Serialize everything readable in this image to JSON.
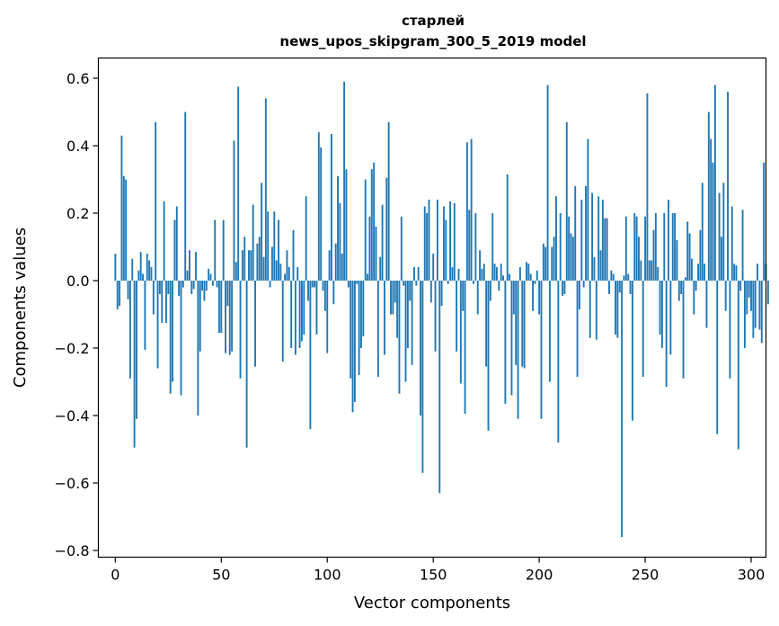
{
  "chart_data": {
    "type": "bar",
    "title_lines": [
      "старлей",
      "news_upos_skipgram_300_5_2019 model"
    ],
    "xlabel": "Vector components",
    "ylabel": "Components values",
    "xlim": [
      -8,
      307
    ],
    "ylim": [
      -0.82,
      0.66
    ],
    "xticks": [
      0,
      50,
      100,
      150,
      200,
      250,
      300
    ],
    "xtick_labels": [
      "0",
      "50",
      "100",
      "150",
      "200",
      "250",
      "300"
    ],
    "yticks": [
      0.6,
      0.4,
      0.2,
      0.0,
      -0.2,
      -0.4,
      -0.6,
      -0.8
    ],
    "ytick_labels": [
      "0.6",
      "0.4",
      "0.2",
      "0.0",
      "−0.2",
      "−0.4",
      "−0.6",
      "−0.8"
    ],
    "grid": false,
    "bar_color": "#1f77b4",
    "series": [
      {
        "x_start": 0,
        "values": [
          0.08,
          -0.085,
          -0.075,
          0.43,
          0.31,
          0.3,
          -0.055,
          -0.29,
          0.065,
          -0.495,
          -0.41,
          0.03,
          0.085,
          0.02,
          -0.205,
          0.08,
          0.06,
          0.04,
          -0.1,
          0.47,
          -0.26,
          -0.04,
          -0.125,
          0.235,
          -0.125,
          -0.04,
          -0.335,
          -0.3,
          0.18,
          0.22,
          -0.045,
          -0.34,
          -0.02,
          0.5,
          0.03,
          0.09,
          -0.04,
          -0.025,
          0.085,
          -0.4,
          -0.21,
          -0.03,
          -0.06,
          -0.03,
          0.035,
          0.02,
          -0.015,
          0.18,
          -0.02,
          -0.155,
          -0.155,
          0.18,
          -0.215,
          -0.075,
          -0.22,
          -0.21,
          0.415,
          0.055,
          0.575,
          -0.29,
          0.09,
          0.13,
          -0.495,
          0.09,
          0.09,
          0.225,
          -0.255,
          0.11,
          0.13,
          0.29,
          0.07,
          0.54,
          0.205,
          -0.02,
          0.1,
          0.205,
          0.06,
          0.18,
          0.05,
          -0.24,
          0.02,
          0.09,
          0.04,
          -0.2,
          0.15,
          -0.22,
          0.04,
          -0.2,
          -0.18,
          -0.16,
          0.25,
          -0.06,
          -0.44,
          -0.02,
          -0.02,
          -0.16,
          0.44,
          0.395,
          -0.03,
          -0.09,
          -0.215,
          0.09,
          0.435,
          -0.07,
          0.11,
          0.31,
          0.23,
          0.08,
          0.59,
          0.33,
          -0.02,
          -0.29,
          -0.39,
          -0.36,
          -0.01,
          -0.28,
          -0.2,
          -0.165,
          0.3,
          0.02,
          0.19,
          0.33,
          0.35,
          0.16,
          -0.285,
          0.07,
          0.225,
          -0.22,
          0.305,
          0.47,
          -0.1,
          -0.1,
          -0.065,
          -0.17,
          -0.335,
          0.19,
          -0.015,
          -0.3,
          -0.2,
          -0.06,
          -0.25,
          0.04,
          -0.015,
          0.04,
          -0.4,
          -0.57,
          0.22,
          0.2,
          0.24,
          -0.065,
          0.08,
          -0.21,
          0.24,
          -0.63,
          -0.075,
          0.22,
          0.18,
          -0.01,
          0.235,
          0.04,
          0.23,
          -0.21,
          0.035,
          -0.305,
          -0.09,
          -0.395,
          0.41,
          0.21,
          0.42,
          -0.01,
          0.2,
          -0.1,
          0.09,
          0.035,
          0.05,
          -0.255,
          -0.445,
          -0.06,
          0.2,
          0.05,
          0.04,
          -0.03,
          0.05,
          0.015,
          -0.365,
          0.315,
          0.02,
          -0.34,
          -0.1,
          -0.25,
          -0.41,
          0.04,
          -0.255,
          -0.26,
          0.055,
          0.05,
          0.02,
          -0.09,
          -0.01,
          0.03,
          -0.1,
          -0.41,
          0.11,
          0.1,
          0.58,
          -0.3,
          0.1,
          0.13,
          0.25,
          -0.48,
          0.2,
          -0.045,
          -0.04,
          0.47,
          0.19,
          0.14,
          0.13,
          0.28,
          -0.285,
          -0.085,
          0.24,
          -0.02,
          0.28,
          0.42,
          -0.17,
          0.26,
          0.07,
          -0.175,
          0.25,
          0.09,
          0.24,
          0.185,
          0.185,
          -0.04,
          0.03,
          0.02,
          -0.16,
          -0.17,
          -0.035,
          -0.76,
          0.015,
          0.19,
          0.02,
          -0.04,
          -0.415,
          0.2,
          0.19,
          0.13,
          0.06,
          -0.285,
          0.19,
          0.555,
          0.06,
          0.06,
          0.15,
          0.2,
          0.04,
          -0.16,
          -0.2,
          0.2,
          -0.315,
          0.24,
          -0.22,
          0.2,
          0.2,
          0.12,
          -0.06,
          -0.04,
          -0.29,
          0.01,
          0.175,
          0.14,
          0.065,
          -0.1,
          -0.03,
          0.05,
          0.15,
          0.29,
          0.05,
          -0.14,
          0.5,
          0.42,
          0.35,
          0.58,
          -0.455,
          0.26,
          0.13,
          0.29,
          -0.09,
          0.56,
          -0.29,
          0.22,
          0.05,
          0.045,
          -0.5,
          -0.03,
          0.21,
          -0.2,
          -0.1,
          -0.05,
          -0.09,
          -0.17,
          -0.14,
          0.05,
          -0.145,
          -0.185,
          0.35,
          0.05,
          -0.07
        ]
      }
    ]
  }
}
